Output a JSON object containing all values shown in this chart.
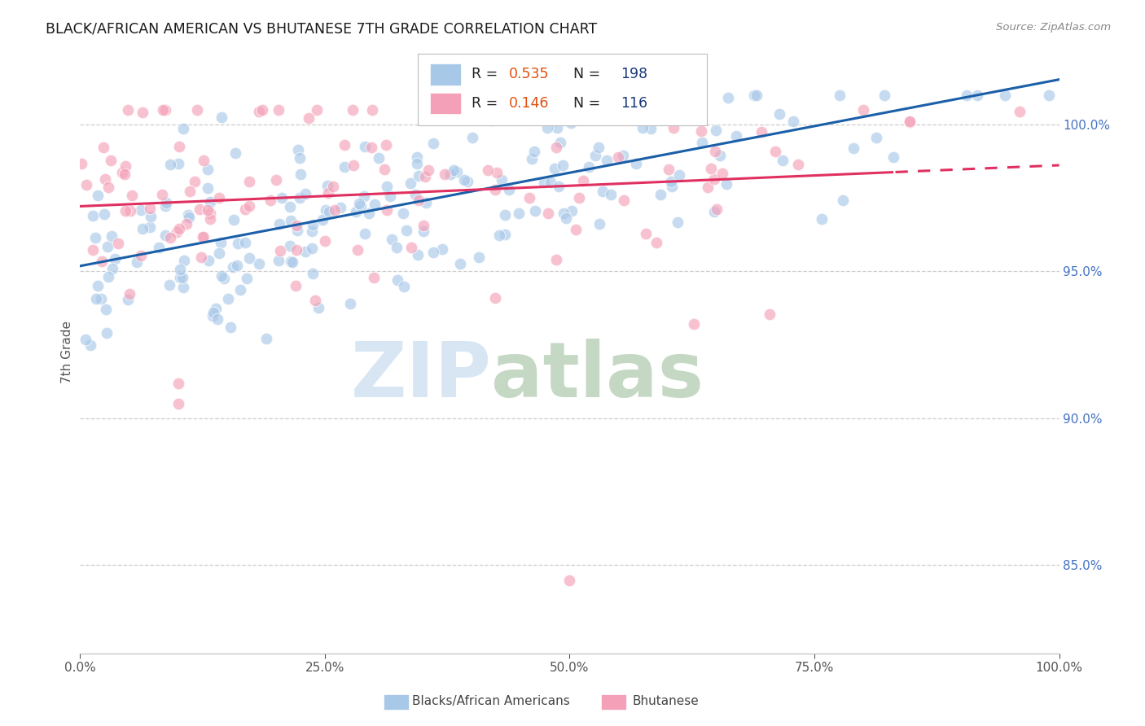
{
  "title": "BLACK/AFRICAN AMERICAN VS BHUTANESE 7TH GRADE CORRELATION CHART",
  "source": "Source: ZipAtlas.com",
  "ylabel": "7th Grade",
  "blue_label": "Blacks/African Americans",
  "pink_label": "Bhutanese",
  "blue_R": 0.535,
  "blue_N": 198,
  "pink_R": 0.146,
  "pink_N": 116,
  "blue_color": "#a8c8e8",
  "pink_color": "#f4a0b8",
  "blue_line_color": "#1a5fa8",
  "pink_line_color": "#e03060",
  "background_color": "#ffffff",
  "grid_color": "#cccccc",
  "right_axis_color": "#4472c4",
  "y_min": 0.82,
  "y_max": 1.025,
  "x_min": 0.0,
  "x_max": 1.0
}
